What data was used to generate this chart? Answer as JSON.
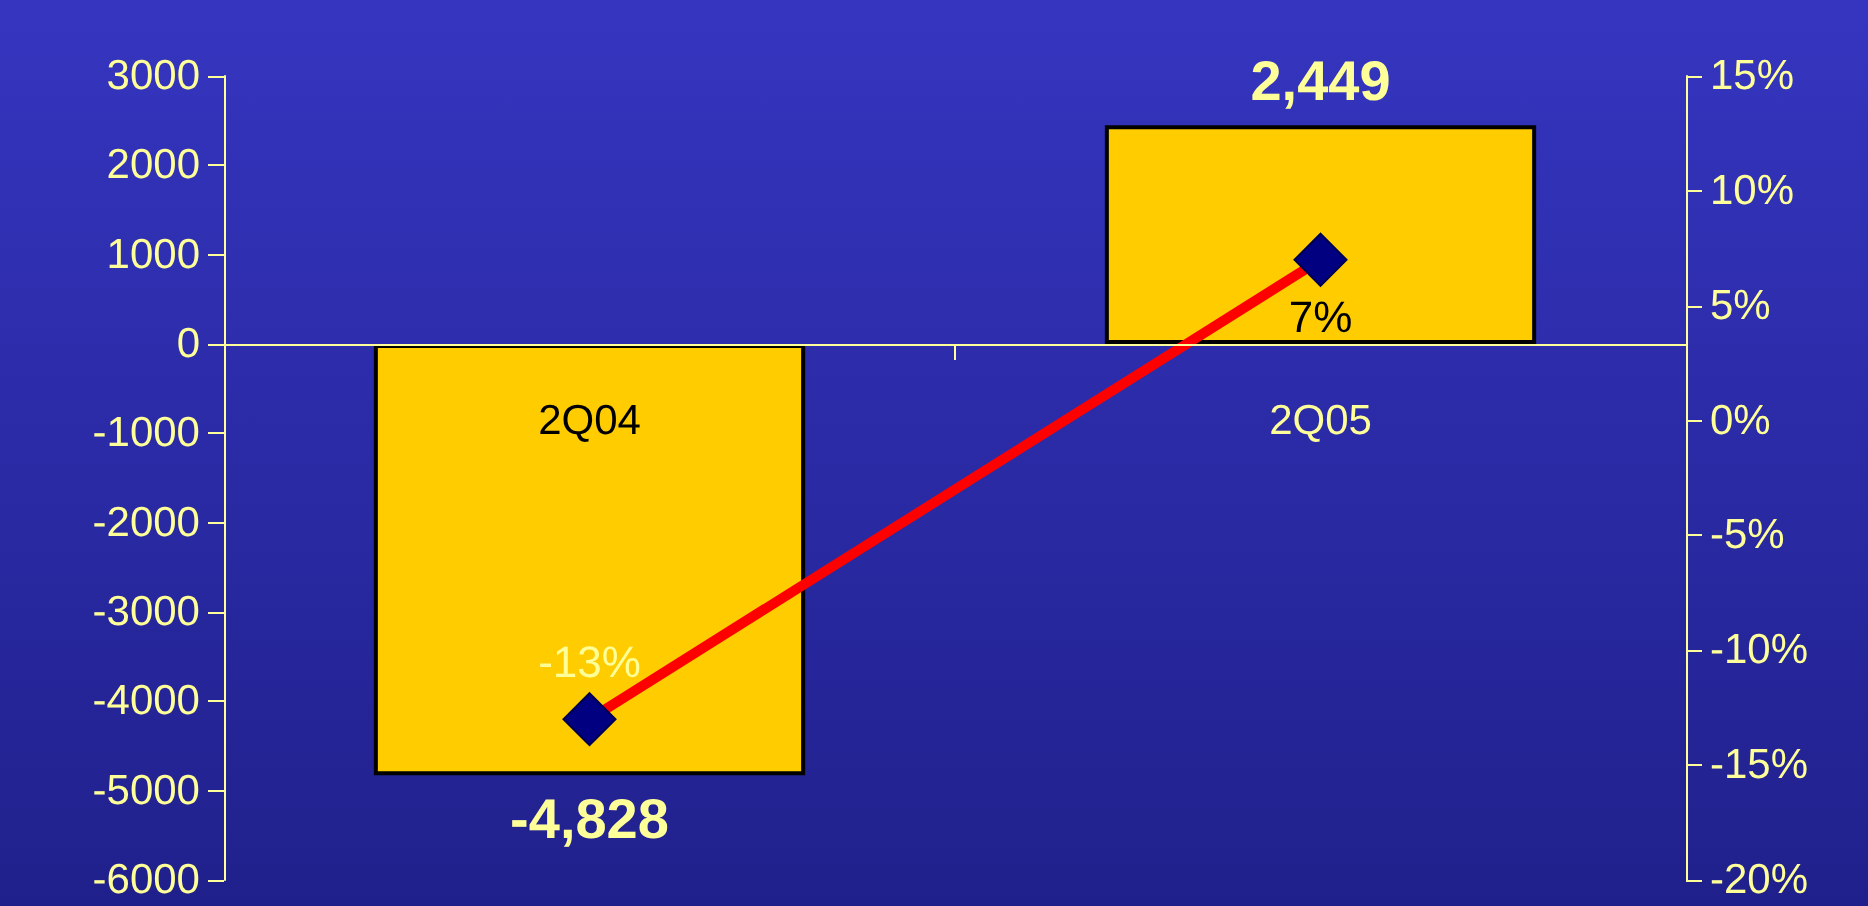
{
  "chart_data": {
    "type": "bar",
    "categories": [
      "2Q04",
      "2Q05"
    ],
    "series": [
      {
        "color": "#ffcc00",
        "values": [
          -4828,
          2449
        ],
        "value_labels": [
          "-4,828",
          "2,449"
        ]
      },
      {
        "type": "line",
        "axis": "y2",
        "color": "#ff0000",
        "values": [
          -13,
          7
        ],
        "value_labels": [
          "-13%",
          "7%"
        ],
        "marker": "diamond"
      }
    ],
    "ylim": [
      -6000,
      3000
    ],
    "yticks": [
      -6000,
      -5000,
      -4000,
      -3000,
      -2000,
      -1000,
      0,
      1000,
      2000,
      3000
    ],
    "y2lim": [
      -20,
      15
    ],
    "y2ticks": [
      {
        "value": -20,
        "label": "-20%"
      },
      {
        "value": -15,
        "label": "-15%"
      },
      {
        "value": -10,
        "label": "-10%"
      },
      {
        "value": -5,
        "label": "-5%"
      },
      {
        "value": 0,
        "label": "0%"
      },
      {
        "value": 5,
        "label": "5%"
      },
      {
        "value": 10,
        "label": "10%"
      },
      {
        "value": 15,
        "label": "15%"
      }
    ],
    "grid": false
  }
}
